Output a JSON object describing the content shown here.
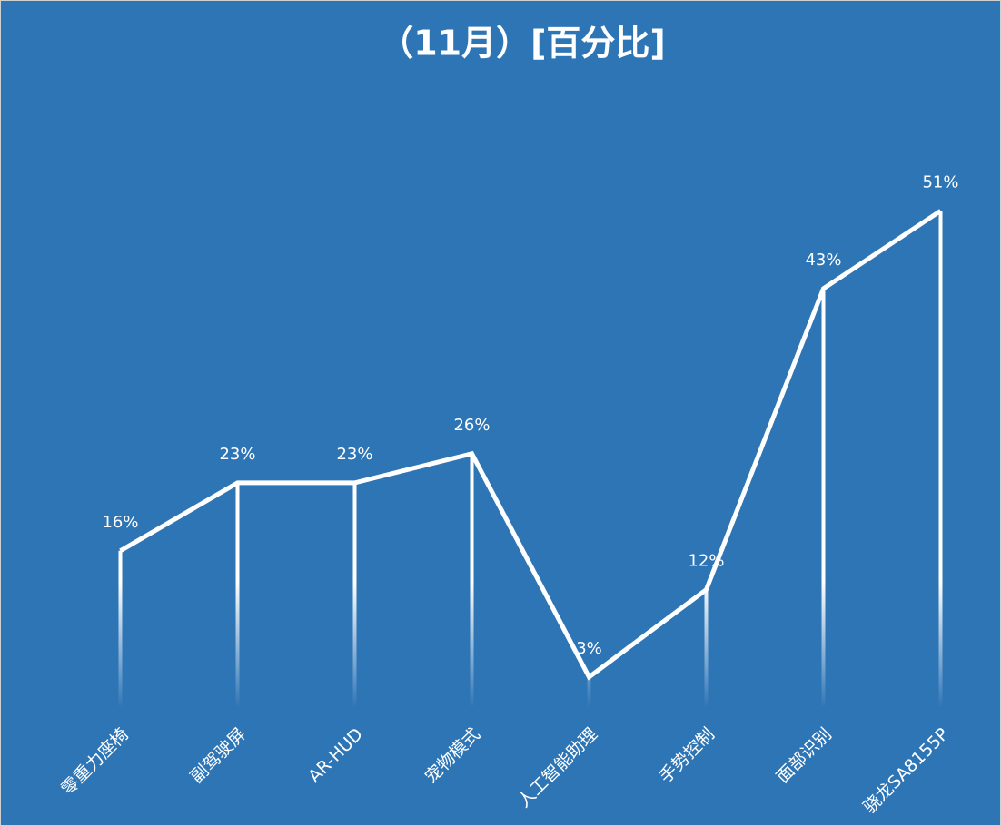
{
  "chart_data": {
    "type": "line",
    "title": "（11月）[百分比]",
    "categories": [
      "零重力座椅",
      "副驾驶屏",
      "AR-HUD",
      "宠物模式",
      "人工智能助理",
      "手势控制",
      "面部识别",
      "骁龙SA8155P"
    ],
    "values": [
      16,
      23,
      23,
      26,
      3,
      12,
      43,
      51
    ],
    "value_labels": [
      "16%",
      "23%",
      "23%",
      "26%",
      "3%",
      "12%",
      "43%",
      "51%"
    ],
    "color": "#ffffff",
    "ylim": [
      0,
      60
    ]
  }
}
